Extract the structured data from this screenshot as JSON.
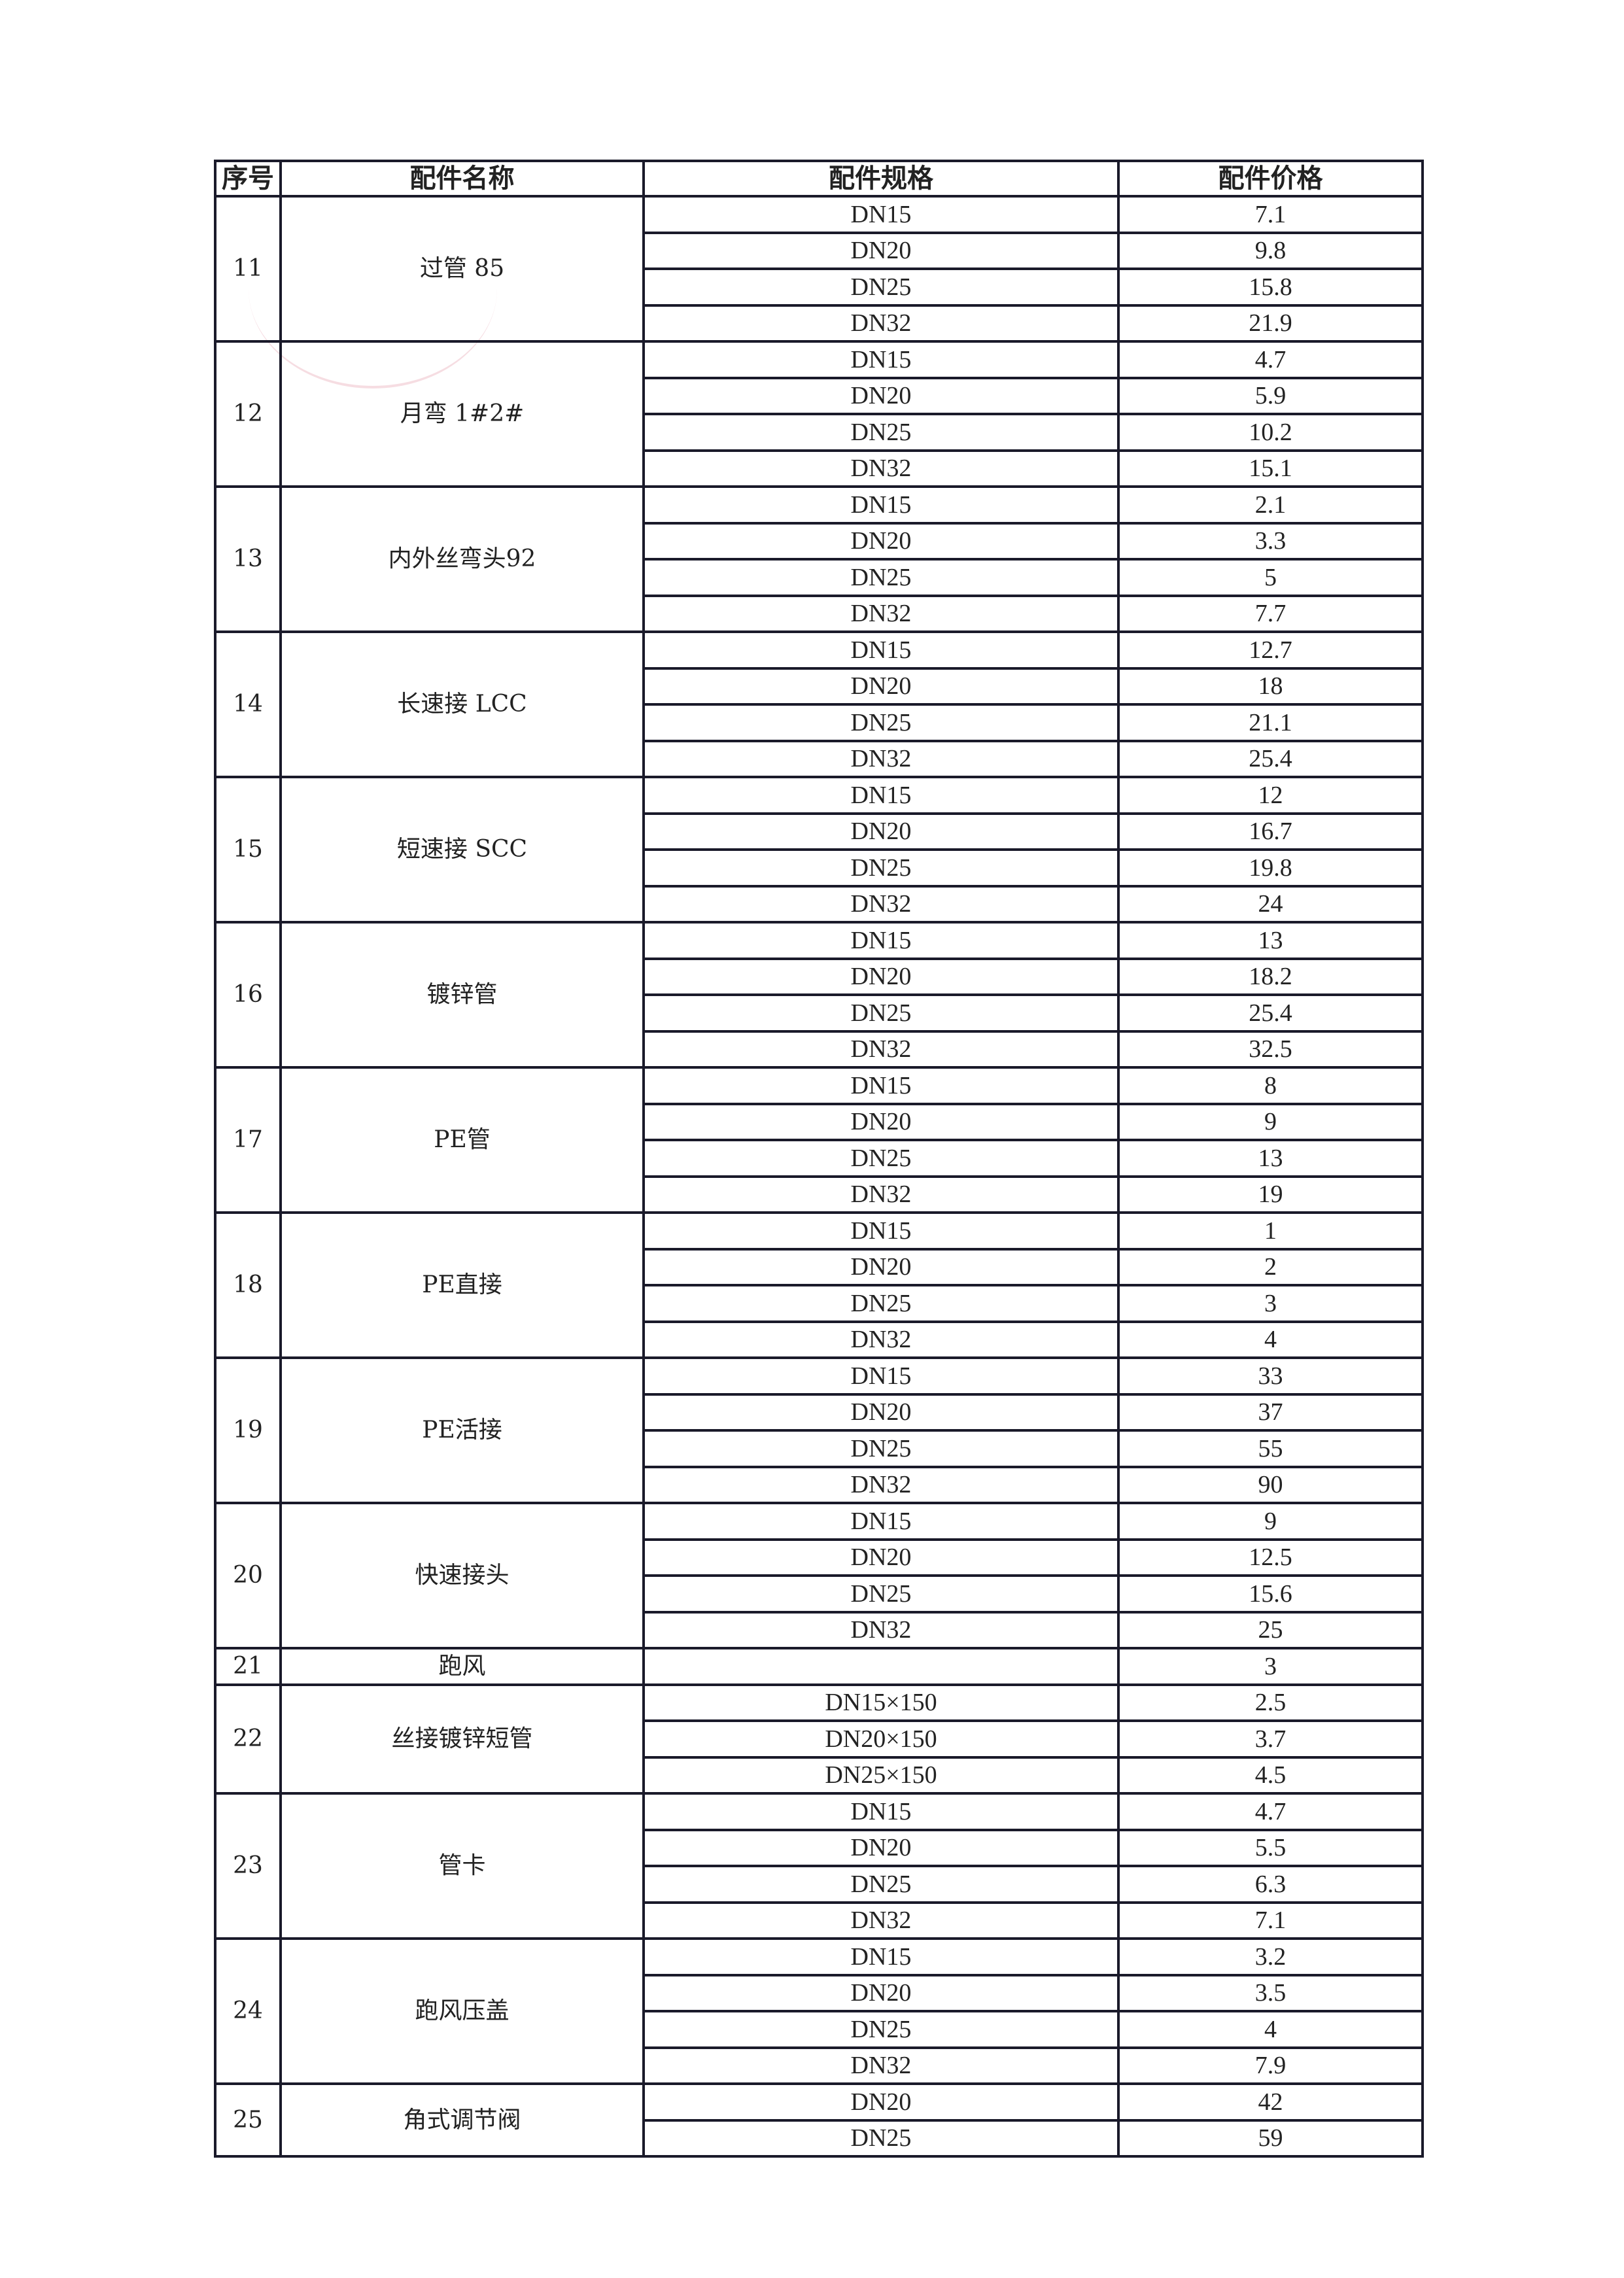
{
  "header": {
    "index": "序号",
    "name": "配件名称",
    "spec": "配件规格",
    "price": "配件价格"
  },
  "groups": [
    {
      "index": "11",
      "name": "过管 85",
      "rows": [
        [
          "DN15",
          "7.1"
        ],
        [
          "DN20",
          "9.8"
        ],
        [
          "DN25",
          "15.8"
        ],
        [
          "DN32",
          "21.9"
        ]
      ]
    },
    {
      "index": "12",
      "name": "月弯 1#2#",
      "rows": [
        [
          "DN15",
          "4.7"
        ],
        [
          "DN20",
          "5.9"
        ],
        [
          "DN25",
          "10.2"
        ],
        [
          "DN32",
          "15.1"
        ]
      ]
    },
    {
      "index": "13",
      "name": "内外丝弯头92",
      "rows": [
        [
          "DN15",
          "2.1"
        ],
        [
          "DN20",
          "3.3"
        ],
        [
          "DN25",
          "5"
        ],
        [
          "DN32",
          "7.7"
        ]
      ]
    },
    {
      "index": "14",
      "name": "长速接 LCC",
      "rows": [
        [
          "DN15",
          "12.7"
        ],
        [
          "DN20",
          "18"
        ],
        [
          "DN25",
          "21.1"
        ],
        [
          "DN32",
          "25.4"
        ]
      ]
    },
    {
      "index": "15",
      "name": "短速接 SCC",
      "rows": [
        [
          "DN15",
          "12"
        ],
        [
          "DN20",
          "16.7"
        ],
        [
          "DN25",
          "19.8"
        ],
        [
          "DN32",
          "24"
        ]
      ]
    },
    {
      "index": "16",
      "name": "镀锌管",
      "rows": [
        [
          "DN15",
          "13"
        ],
        [
          "DN20",
          "18.2"
        ],
        [
          "DN25",
          "25.4"
        ],
        [
          "DN32",
          "32.5"
        ]
      ]
    },
    {
      "index": "17",
      "name": "PE管",
      "rows": [
        [
          "DN15",
          "8"
        ],
        [
          "DN20",
          "9"
        ],
        [
          "DN25",
          "13"
        ],
        [
          "DN32",
          "19"
        ]
      ]
    },
    {
      "index": "18",
      "name": "PE直接",
      "rows": [
        [
          "DN15",
          "1"
        ],
        [
          "DN20",
          "2"
        ],
        [
          "DN25",
          "3"
        ],
        [
          "DN32",
          "4"
        ]
      ]
    },
    {
      "index": "19",
      "name": "PE活接",
      "rows": [
        [
          "DN15",
          "33"
        ],
        [
          "DN20",
          "37"
        ],
        [
          "DN25",
          "55"
        ],
        [
          "DN32",
          "90"
        ]
      ]
    },
    {
      "index": "20",
      "name": "快速接头",
      "rows": [
        [
          "DN15",
          "9"
        ],
        [
          "DN20",
          "12.5"
        ],
        [
          "DN25",
          "15.6"
        ],
        [
          "DN32",
          "25"
        ]
      ]
    },
    {
      "index": "21",
      "name": "跑风",
      "rows": [
        [
          "",
          "3"
        ]
      ]
    },
    {
      "index": "22",
      "name": "丝接镀锌短管",
      "rows": [
        [
          "DN15×150",
          "2.5"
        ],
        [
          "DN20×150",
          "3.7"
        ],
        [
          "DN25×150",
          "4.5"
        ]
      ]
    },
    {
      "index": "23",
      "name": "管卡",
      "rows": [
        [
          "DN15",
          "4.7"
        ],
        [
          "DN20",
          "5.5"
        ],
        [
          "DN25",
          "6.3"
        ],
        [
          "DN32",
          "7.1"
        ]
      ]
    },
    {
      "index": "24",
      "name": "跑风压盖",
      "rows": [
        [
          "DN15",
          "3.2"
        ],
        [
          "DN20",
          "3.5"
        ],
        [
          "DN25",
          "4"
        ],
        [
          "DN32",
          "7.9"
        ]
      ]
    },
    {
      "index": "25",
      "name": "角式调节阀",
      "rows": [
        [
          "DN20",
          "42"
        ],
        [
          "DN25",
          "59"
        ]
      ]
    }
  ]
}
